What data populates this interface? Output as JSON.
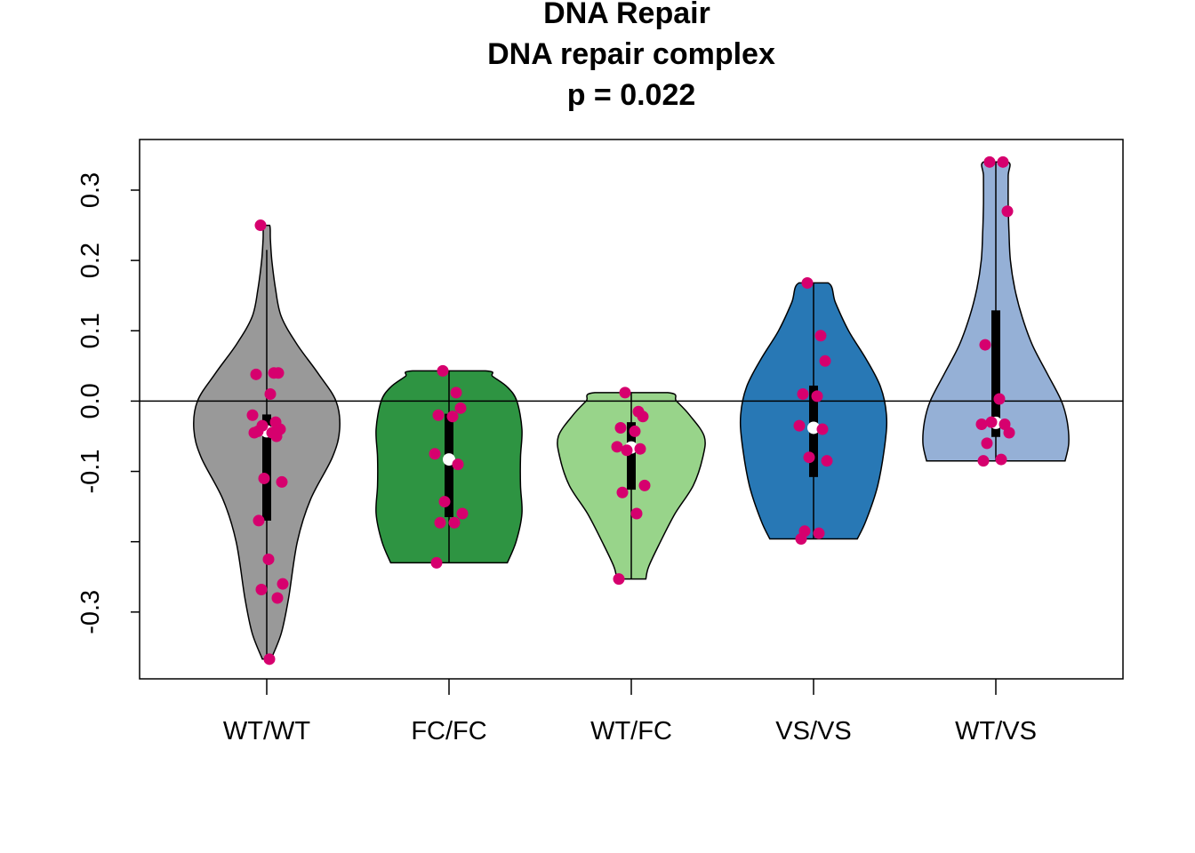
{
  "chart_data": {
    "type": "violin",
    "title": [
      "DNA Repair",
      "DNA repair complex",
      "p = 0.022"
    ],
    "xlabel": "",
    "ylabel": "",
    "categories": [
      "WT/WT",
      "FC/FC",
      "WT/FC",
      "VS/VS",
      "WT/VS"
    ],
    "ylim": [
      -0.395,
      0.372
    ],
    "yticks": [
      -0.3,
      -0.1,
      0.0,
      0.1,
      0.2,
      0.3
    ],
    "ytick_labels": [
      "-0.3",
      "-0.1",
      "0.0",
      "0.1",
      "0.2",
      "0.3"
    ],
    "reference_line": 0.0,
    "grid": false,
    "legend": "none",
    "colors": {
      "violins": [
        "#999999",
        "#2e9442",
        "#98d48a",
        "#2878b5",
        "#95b0d6"
      ],
      "points": "#d6006e",
      "median": "#ffffff",
      "box": "#000000"
    },
    "groups": [
      {
        "name": "WT/WT",
        "median": -0.043,
        "q1": -0.17,
        "q3": -0.019,
        "whisker_low": -0.367,
        "whisker_high": 0.215,
        "violin_min": -0.367,
        "violin_max": 0.25,
        "violin_density": [
          [
            -0.367,
            0.06
          ],
          [
            -0.33,
            0.2
          ],
          [
            -0.28,
            0.3
          ],
          [
            -0.2,
            0.42
          ],
          [
            -0.14,
            0.6
          ],
          [
            -0.08,
            0.9
          ],
          [
            -0.04,
            1.0
          ],
          [
            0.0,
            0.95
          ],
          [
            0.04,
            0.7
          ],
          [
            0.08,
            0.42
          ],
          [
            0.12,
            0.2
          ],
          [
            0.16,
            0.12
          ],
          [
            0.2,
            0.07
          ],
          [
            0.23,
            0.05
          ],
          [
            0.25,
            0.04
          ]
        ],
        "points": [
          0.25,
          0.04,
          0.04,
          0.038,
          0.01,
          -0.02,
          -0.03,
          -0.035,
          -0.04,
          -0.043,
          -0.045,
          -0.045,
          -0.05,
          -0.11,
          -0.115,
          -0.17,
          -0.225,
          -0.26,
          -0.268,
          -0.28,
          -0.367
        ]
      },
      {
        "name": "FC/FC",
        "median": -0.083,
        "q1": -0.165,
        "q3": -0.018,
        "whisker_low": -0.23,
        "whisker_high": 0.043,
        "violin_min": -0.23,
        "violin_max": 0.043,
        "violin_density": [
          [
            -0.23,
            0.8
          ],
          [
            -0.2,
            0.92
          ],
          [
            -0.16,
            1.0
          ],
          [
            -0.12,
            0.98
          ],
          [
            -0.08,
            0.98
          ],
          [
            -0.04,
            1.0
          ],
          [
            0.0,
            0.93
          ],
          [
            0.02,
            0.8
          ],
          [
            0.035,
            0.6
          ],
          [
            0.043,
            0.5
          ]
        ],
        "points": [
          0.043,
          0.012,
          -0.01,
          -0.02,
          -0.022,
          -0.075,
          -0.09,
          -0.143,
          -0.16,
          -0.173,
          -0.173,
          -0.23
        ]
      },
      {
        "name": "WT/FC",
        "median": -0.066,
        "q1": -0.126,
        "q3": -0.03,
        "whisker_low": -0.253,
        "whisker_high": 0.012,
        "violin_min": -0.253,
        "violin_max": 0.012,
        "violin_density": [
          [
            -0.253,
            0.2
          ],
          [
            -0.235,
            0.24
          ],
          [
            -0.2,
            0.4
          ],
          [
            -0.16,
            0.6
          ],
          [
            -0.12,
            0.85
          ],
          [
            -0.08,
            0.98
          ],
          [
            -0.05,
            1.0
          ],
          [
            -0.02,
            0.8
          ],
          [
            0.0,
            0.62
          ],
          [
            0.012,
            0.5
          ]
        ],
        "points": [
          0.012,
          -0.015,
          -0.022,
          -0.038,
          -0.043,
          -0.065,
          -0.068,
          -0.07,
          -0.12,
          -0.13,
          -0.16,
          -0.253
        ]
      },
      {
        "name": "VS/VS",
        "median": -0.038,
        "q1": -0.108,
        "q3": 0.022,
        "whisker_low": -0.196,
        "whisker_high": 0.168,
        "violin_min": -0.196,
        "violin_max": 0.168,
        "violin_density": [
          [
            -0.196,
            0.6
          ],
          [
            -0.17,
            0.72
          ],
          [
            -0.12,
            0.88
          ],
          [
            -0.06,
            0.98
          ],
          [
            -0.02,
            1.0
          ],
          [
            0.02,
            0.92
          ],
          [
            0.06,
            0.72
          ],
          [
            0.1,
            0.48
          ],
          [
            0.14,
            0.3
          ],
          [
            0.168,
            0.2
          ]
        ],
        "points": [
          0.168,
          0.093,
          0.057,
          0.01,
          0.007,
          -0.035,
          -0.04,
          -0.08,
          -0.085,
          -0.185,
          -0.188,
          -0.196
        ]
      },
      {
        "name": "WT/VS",
        "median": -0.031,
        "q1": -0.051,
        "q3": 0.129,
        "whisker_low": -0.085,
        "whisker_high": 0.34,
        "violin_min": -0.085,
        "violin_max": 0.34,
        "violin_density": [
          [
            -0.085,
            0.95
          ],
          [
            -0.06,
            1.0
          ],
          [
            -0.03,
            0.98
          ],
          [
            0.0,
            0.9
          ],
          [
            0.04,
            0.7
          ],
          [
            0.08,
            0.5
          ],
          [
            0.12,
            0.36
          ],
          [
            0.16,
            0.26
          ],
          [
            0.2,
            0.2
          ],
          [
            0.24,
            0.18
          ],
          [
            0.28,
            0.17
          ],
          [
            0.32,
            0.17
          ],
          [
            0.34,
            0.17
          ]
        ],
        "points": [
          0.34,
          0.34,
          0.27,
          0.08,
          0.003,
          -0.033,
          -0.033,
          -0.03,
          -0.045,
          -0.06,
          -0.083,
          -0.085
        ]
      }
    ]
  }
}
